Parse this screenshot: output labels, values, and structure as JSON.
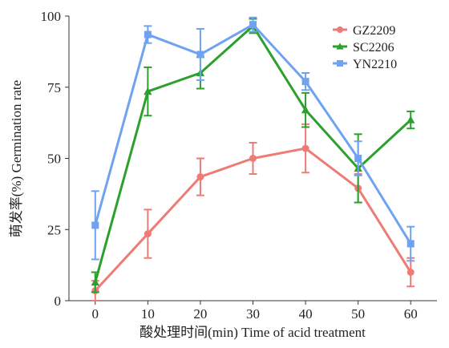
{
  "chart_data": {
    "type": "line",
    "xlabel": "酸处理时间(min) Time of acid treatment",
    "ylabel": "萌发率(%) Germination rate",
    "xlim": [
      -5,
      65
    ],
    "ylim": [
      0,
      100
    ],
    "x_ticks": [
      0,
      10,
      20,
      30,
      40,
      50,
      60
    ],
    "y_ticks": [
      0,
      25,
      50,
      75,
      100
    ],
    "x_tick_labels": [
      "0",
      "10",
      "20",
      "30",
      "40",
      "50",
      "60"
    ],
    "y_tick_labels": [
      "0",
      "25",
      "50",
      "75",
      "100"
    ],
    "grid": false,
    "legend_position": "top-right",
    "x": [
      0,
      10,
      20,
      30,
      40,
      50,
      60
    ],
    "series": [
      {
        "name": "GZ2209",
        "color": "#ee7b76",
        "marker": "circle",
        "values": [
          3.5,
          23.5,
          43.5,
          50,
          53.5,
          39.5,
          10
        ],
        "errors": [
          3.5,
          8.5,
          6.5,
          5.5,
          8.5,
          5,
          5
        ]
      },
      {
        "name": "SC2206",
        "color": "#2ca02c",
        "marker": "triangle",
        "values": [
          6.5,
          73.5,
          80,
          96.5,
          67,
          46.5,
          63.5
        ],
        "errors": [
          3.5,
          8.5,
          5.5,
          2.5,
          6,
          12,
          3
        ]
      },
      {
        "name": "YN2210",
        "color": "#6fa3f2",
        "marker": "square",
        "values": [
          26.5,
          93.5,
          86.5,
          97,
          77,
          50,
          20
        ],
        "errors": [
          12,
          3,
          9,
          2.5,
          3,
          6,
          6
        ]
      }
    ]
  }
}
